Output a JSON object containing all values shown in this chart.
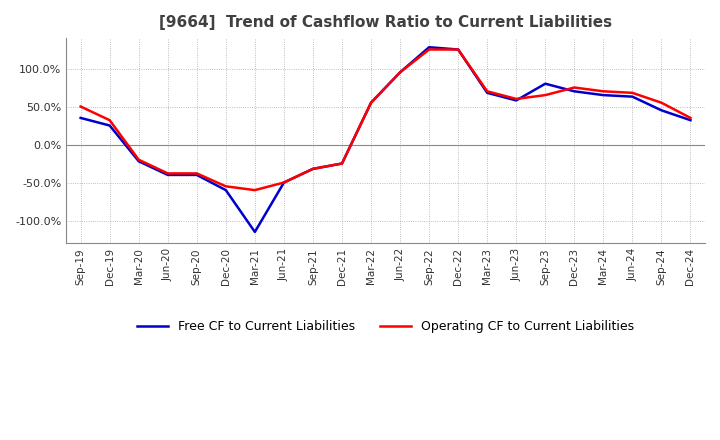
{
  "title": "[9664]  Trend of Cashflow Ratio to Current Liabilities",
  "x_labels": [
    "Sep-19",
    "Dec-19",
    "Mar-20",
    "Jun-20",
    "Sep-20",
    "Dec-20",
    "Mar-21",
    "Jun-21",
    "Sep-21",
    "Dec-21",
    "Mar-22",
    "Jun-22",
    "Sep-22",
    "Dec-22",
    "Mar-23",
    "Jun-23",
    "Sep-23",
    "Dec-23",
    "Mar-24",
    "Jun-24",
    "Sep-24",
    "Dec-24"
  ],
  "operating_cf": [
    50,
    32,
    -20,
    -38,
    -38,
    -55,
    -60,
    -50,
    -32,
    -25,
    55,
    95,
    125,
    125,
    70,
    60,
    65,
    75,
    70,
    68,
    55,
    35
  ],
  "free_cf": [
    35,
    25,
    -22,
    -40,
    -40,
    -60,
    -115,
    -50,
    -32,
    -25,
    55,
    95,
    128,
    125,
    68,
    58,
    80,
    70,
    65,
    63,
    45,
    32
  ],
  "operating_color": "#ff0000",
  "free_color": "#0000cd",
  "ylim": [
    -130,
    140
  ],
  "yticks": [
    -100,
    -50,
    0,
    50,
    100
  ],
  "grid_color": "#aaaaaa",
  "background_color": "#ffffff",
  "legend_op": "Operating CF to Current Liabilities",
  "legend_free": "Free CF to Current Liabilities",
  "title_color": "#404040",
  "title_fontsize": 11
}
